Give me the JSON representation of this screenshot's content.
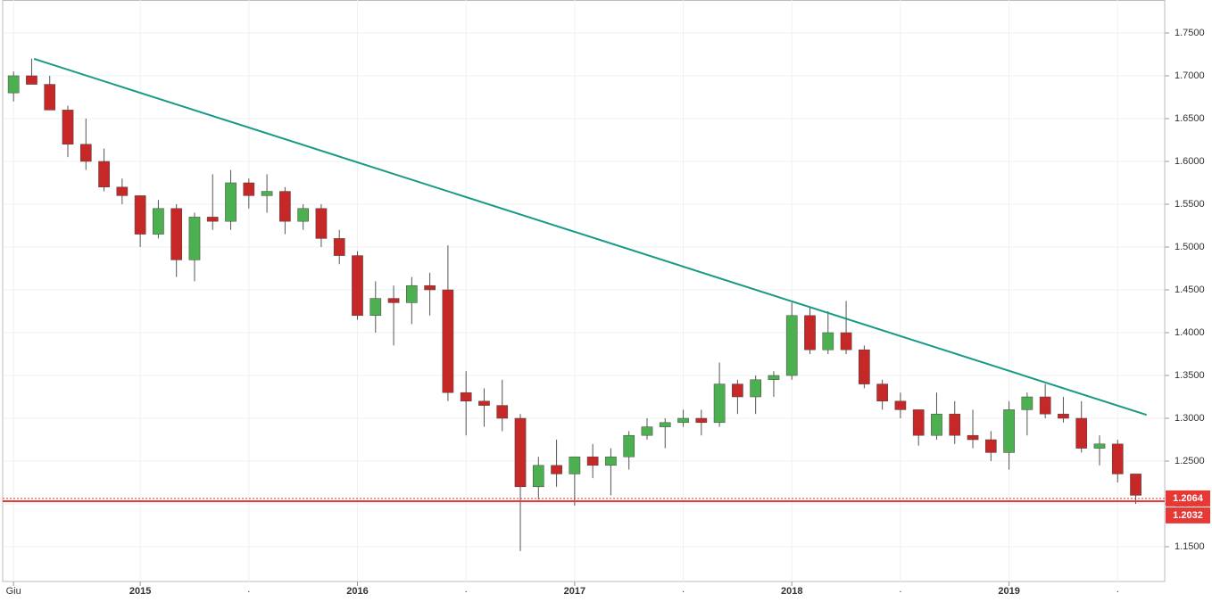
{
  "chart_data": {
    "type": "candlestick",
    "xlim": [
      -0.6,
      63.6
    ],
    "ylim": [
      1.1094,
      1.7885
    ],
    "xticks": [
      {
        "value": 0,
        "label": "Giu"
      },
      {
        "value": 7,
        "label": "2015"
      },
      {
        "value": 19,
        "label": "2016"
      },
      {
        "value": 31,
        "label": "2017"
      },
      {
        "value": 43,
        "label": "2018"
      },
      {
        "value": 55,
        "label": "2019"
      }
    ],
    "xminorticks": [
      {
        "value": 13,
        "label": "."
      },
      {
        "value": 25,
        "label": "."
      },
      {
        "value": 37,
        "label": "."
      },
      {
        "value": 49,
        "label": "."
      },
      {
        "value": 61,
        "label": "."
      }
    ],
    "yticks": [
      {
        "value": 1.15,
        "label": "1.1500"
      },
      {
        "value": 1.2,
        "label": "1.2000"
      },
      {
        "value": 1.25,
        "label": "1.2500"
      },
      {
        "value": 1.3,
        "label": "1.3000"
      },
      {
        "value": 1.35,
        "label": "1.3500"
      },
      {
        "value": 1.4,
        "label": "1.4000"
      },
      {
        "value": 1.45,
        "label": "1.4500"
      },
      {
        "value": 1.5,
        "label": "1.5000"
      },
      {
        "value": 1.55,
        "label": "1.5500"
      },
      {
        "value": 1.6,
        "label": "1.6000"
      },
      {
        "value": 1.65,
        "label": "1.6500"
      },
      {
        "value": 1.7,
        "label": "1.7000"
      },
      {
        "value": 1.75,
        "label": "1.7500"
      }
    ],
    "grid": true,
    "up_color": "#4caf50",
    "down_color": "#c62828",
    "candles": [
      [
        1.68,
        1.705,
        1.67,
        1.7
      ],
      [
        1.7,
        1.72,
        1.69,
        1.69
      ],
      [
        1.69,
        1.7,
        1.66,
        1.66
      ],
      [
        1.66,
        1.665,
        1.605,
        1.62
      ],
      [
        1.62,
        1.65,
        1.59,
        1.6
      ],
      [
        1.6,
        1.615,
        1.565,
        1.57
      ],
      [
        1.57,
        1.58,
        1.55,
        1.56
      ],
      [
        1.56,
        1.56,
        1.5,
        1.515
      ],
      [
        1.515,
        1.555,
        1.51,
        1.545
      ],
      [
        1.545,
        1.55,
        1.465,
        1.485
      ],
      [
        1.485,
        1.54,
        1.46,
        1.535
      ],
      [
        1.535,
        1.585,
        1.52,
        1.53
      ],
      [
        1.53,
        1.59,
        1.52,
        1.575
      ],
      [
        1.575,
        1.58,
        1.545,
        1.56
      ],
      [
        1.56,
        1.585,
        1.54,
        1.565
      ],
      [
        1.565,
        1.57,
        1.515,
        1.53
      ],
      [
        1.53,
        1.55,
        1.52,
        1.545
      ],
      [
        1.545,
        1.55,
        1.5,
        1.51
      ],
      [
        1.51,
        1.52,
        1.48,
        1.49
      ],
      [
        1.49,
        1.495,
        1.415,
        1.42
      ],
      [
        1.42,
        1.46,
        1.4,
        1.44
      ],
      [
        1.44,
        1.455,
        1.385,
        1.435
      ],
      [
        1.435,
        1.465,
        1.41,
        1.455
      ],
      [
        1.455,
        1.47,
        1.42,
        1.45
      ],
      [
        1.45,
        1.502,
        1.32,
        1.33
      ],
      [
        1.33,
        1.355,
        1.28,
        1.32
      ],
      [
        1.32,
        1.335,
        1.29,
        1.315
      ],
      [
        1.315,
        1.345,
        1.285,
        1.3
      ],
      [
        1.3,
        1.305,
        1.145,
        1.22
      ],
      [
        1.22,
        1.255,
        1.205,
        1.245
      ],
      [
        1.245,
        1.275,
        1.22,
        1.235
      ],
      [
        1.235,
        1.255,
        1.198,
        1.255
      ],
      [
        1.255,
        1.27,
        1.23,
        1.245
      ],
      [
        1.245,
        1.265,
        1.21,
        1.255
      ],
      [
        1.255,
        1.285,
        1.24,
        1.28
      ],
      [
        1.28,
        1.3,
        1.275,
        1.29
      ],
      [
        1.29,
        1.3,
        1.265,
        1.295
      ],
      [
        1.295,
        1.31,
        1.29,
        1.3
      ],
      [
        1.3,
        1.31,
        1.28,
        1.295
      ],
      [
        1.295,
        1.365,
        1.29,
        1.34
      ],
      [
        1.34,
        1.345,
        1.305,
        1.325
      ],
      [
        1.325,
        1.35,
        1.305,
        1.345
      ],
      [
        1.345,
        1.355,
        1.325,
        1.35
      ],
      [
        1.35,
        1.435,
        1.345,
        1.42
      ],
      [
        1.42,
        1.43,
        1.375,
        1.38
      ],
      [
        1.38,
        1.425,
        1.375,
        1.4
      ],
      [
        1.4,
        1.437,
        1.375,
        1.38
      ],
      [
        1.38,
        1.385,
        1.335,
        1.34
      ],
      [
        1.34,
        1.345,
        1.31,
        1.32
      ],
      [
        1.32,
        1.33,
        1.3,
        1.31
      ],
      [
        1.31,
        1.31,
        1.268,
        1.28
      ],
      [
        1.28,
        1.33,
        1.275,
        1.305
      ],
      [
        1.305,
        1.32,
        1.27,
        1.28
      ],
      [
        1.28,
        1.31,
        1.265,
        1.275
      ],
      [
        1.275,
        1.285,
        1.25,
        1.26
      ],
      [
        1.26,
        1.32,
        1.24,
        1.31
      ],
      [
        1.31,
        1.33,
        1.28,
        1.325
      ],
      [
        1.325,
        1.34,
        1.3,
        1.305
      ],
      [
        1.305,
        1.325,
        1.295,
        1.3
      ],
      [
        1.3,
        1.32,
        1.26,
        1.265
      ],
      [
        1.265,
        1.28,
        1.245,
        1.27
      ],
      [
        1.27,
        1.275,
        1.225,
        1.235
      ],
      [
        1.235,
        1.235,
        1.2,
        1.21
      ]
    ],
    "trendline": {
      "x": [
        1.13,
        62.6
      ],
      "y": [
        1.7198,
        1.304
      ],
      "color": "#1a9a86"
    },
    "levels": [
      1.2064,
      1.2032
    ],
    "level_styles": [
      "dotted",
      "solid"
    ],
    "level_color": "#e53935"
  }
}
